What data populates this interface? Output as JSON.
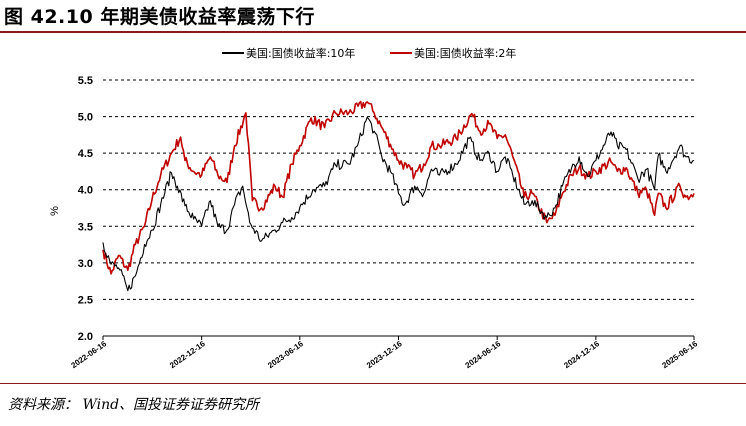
{
  "figure": {
    "title": "图 42.10 年期美债收益率震荡下行",
    "source": "资料来源： Wind、国投证券证券研究所"
  },
  "colors": {
    "title_rule": "#8a1a1a",
    "series_10y": "#000000",
    "series_2y": "#c00000"
  },
  "chart_data": {
    "type": "line",
    "ylabel": "%",
    "ylim": [
      2.0,
      5.5
    ],
    "yticks": [
      "2.0",
      "2.5",
      "3.0",
      "3.5",
      "4.0",
      "4.5",
      "5.0",
      "5.5"
    ],
    "grid": "horizontal dashed",
    "legend_position": "top",
    "xlim": [
      "2022-06-16",
      "2025-06-16"
    ],
    "xtick_labels": [
      "2022-06-16",
      "2022-12-16",
      "2023-06-16",
      "2023-12-16",
      "2024-06-16",
      "2024-12-16",
      "2025-06-16"
    ],
    "series": [
      {
        "name": "美国:国债收益率:10年",
        "color": "#000000",
        "points": [
          [
            "2022-06-16",
            3.28
          ],
          [
            "2022-07-01",
            2.98
          ],
          [
            "2022-07-15",
            2.93
          ],
          [
            "2022-08-01",
            2.62
          ],
          [
            "2022-08-15",
            2.82
          ],
          [
            "2022-09-01",
            3.25
          ],
          [
            "2022-09-15",
            3.45
          ],
          [
            "2022-10-01",
            3.8
          ],
          [
            "2022-10-21",
            4.23
          ],
          [
            "2022-11-01",
            4.05
          ],
          [
            "2022-11-15",
            3.78
          ],
          [
            "2022-12-01",
            3.6
          ],
          [
            "2022-12-16",
            3.5
          ],
          [
            "2023-01-01",
            3.85
          ],
          [
            "2023-01-15",
            3.5
          ],
          [
            "2023-02-01",
            3.45
          ],
          [
            "2023-02-15",
            3.8
          ],
          [
            "2023-03-02",
            4.05
          ],
          [
            "2023-03-15",
            3.55
          ],
          [
            "2023-04-06",
            3.3
          ],
          [
            "2023-05-01",
            3.45
          ],
          [
            "2023-05-15",
            3.55
          ],
          [
            "2023-06-01",
            3.62
          ],
          [
            "2023-06-16",
            3.76
          ],
          [
            "2023-07-10",
            4.0
          ],
          [
            "2023-08-01",
            4.05
          ],
          [
            "2023-08-21",
            4.34
          ],
          [
            "2023-09-15",
            4.35
          ],
          [
            "2023-10-01",
            4.6
          ],
          [
            "2023-10-19",
            4.99
          ],
          [
            "2023-11-01",
            4.8
          ],
          [
            "2023-11-15",
            4.45
          ],
          [
            "2023-12-01",
            4.25
          ],
          [
            "2023-12-16",
            3.95
          ],
          [
            "2023-12-27",
            3.79
          ],
          [
            "2024-01-15",
            4.05
          ],
          [
            "2024-02-01",
            3.95
          ],
          [
            "2024-02-15",
            4.28
          ],
          [
            "2024-03-01",
            4.2
          ],
          [
            "2024-04-01",
            4.35
          ],
          [
            "2024-04-25",
            4.7
          ],
          [
            "2024-05-15",
            4.4
          ],
          [
            "2024-06-01",
            4.5
          ],
          [
            "2024-06-16",
            4.25
          ],
          [
            "2024-07-01",
            4.45
          ],
          [
            "2024-07-15",
            4.2
          ],
          [
            "2024-08-05",
            3.8
          ],
          [
            "2024-08-20",
            3.85
          ],
          [
            "2024-09-16",
            3.62
          ],
          [
            "2024-10-01",
            3.75
          ],
          [
            "2024-10-15",
            4.05
          ],
          [
            "2024-11-01",
            4.3
          ],
          [
            "2024-11-15",
            4.45
          ],
          [
            "2024-12-01",
            4.18
          ],
          [
            "2024-12-16",
            4.4
          ],
          [
            "2025-01-13",
            4.79
          ],
          [
            "2025-01-25",
            4.6
          ],
          [
            "2025-02-10",
            4.55
          ],
          [
            "2025-03-04",
            4.15
          ],
          [
            "2025-03-20",
            4.28
          ],
          [
            "2025-04-04",
            4.0
          ],
          [
            "2025-04-11",
            4.48
          ],
          [
            "2025-04-25",
            4.25
          ],
          [
            "2025-05-21",
            4.6
          ],
          [
            "2025-06-01",
            4.45
          ],
          [
            "2025-06-16",
            4.4
          ]
        ]
      },
      {
        "name": "美国:国债收益率:2年",
        "color": "#c00000",
        "points": [
          [
            "2022-06-16",
            3.18
          ],
          [
            "2022-07-01",
            2.85
          ],
          [
            "2022-07-15",
            3.1
          ],
          [
            "2022-08-01",
            2.9
          ],
          [
            "2022-08-15",
            3.25
          ],
          [
            "2022-09-01",
            3.5
          ],
          [
            "2022-09-15",
            3.87
          ],
          [
            "2022-10-01",
            4.2
          ],
          [
            "2022-10-21",
            4.5
          ],
          [
            "2022-11-07",
            4.72
          ],
          [
            "2022-11-15",
            4.4
          ],
          [
            "2022-12-01",
            4.25
          ],
          [
            "2022-12-16",
            4.2
          ],
          [
            "2023-01-01",
            4.45
          ],
          [
            "2023-01-15",
            4.2
          ],
          [
            "2023-02-01",
            4.1
          ],
          [
            "2023-02-15",
            4.6
          ],
          [
            "2023-03-08",
            5.05
          ],
          [
            "2023-03-20",
            3.85
          ],
          [
            "2023-04-06",
            3.75
          ],
          [
            "2023-05-01",
            4.05
          ],
          [
            "2023-05-15",
            3.9
          ],
          [
            "2023-06-01",
            4.35
          ],
          [
            "2023-06-16",
            4.6
          ],
          [
            "2023-07-07",
            4.98
          ],
          [
            "2023-08-01",
            4.85
          ],
          [
            "2023-08-21",
            5.05
          ],
          [
            "2023-09-15",
            5.05
          ],
          [
            "2023-10-19",
            5.2
          ],
          [
            "2023-11-01",
            5.05
          ],
          [
            "2023-11-15",
            4.85
          ],
          [
            "2023-12-01",
            4.62
          ],
          [
            "2023-12-16",
            4.4
          ],
          [
            "2024-01-01",
            4.3
          ],
          [
            "2024-01-15",
            4.2
          ],
          [
            "2024-02-01",
            4.35
          ],
          [
            "2024-02-15",
            4.6
          ],
          [
            "2024-03-01",
            4.6
          ],
          [
            "2024-04-01",
            4.7
          ],
          [
            "2024-04-30",
            5.04
          ],
          [
            "2024-05-15",
            4.8
          ],
          [
            "2024-06-01",
            4.9
          ],
          [
            "2024-06-16",
            4.7
          ],
          [
            "2024-07-01",
            4.75
          ],
          [
            "2024-07-15",
            4.45
          ],
          [
            "2024-08-05",
            3.9
          ],
          [
            "2024-08-20",
            3.95
          ],
          [
            "2024-09-16",
            3.55
          ],
          [
            "2024-10-01",
            3.65
          ],
          [
            "2024-10-15",
            3.95
          ],
          [
            "2024-11-01",
            4.2
          ],
          [
            "2024-11-15",
            4.3
          ],
          [
            "2024-12-01",
            4.18
          ],
          [
            "2024-12-16",
            4.25
          ],
          [
            "2025-01-13",
            4.38
          ],
          [
            "2025-01-25",
            4.25
          ],
          [
            "2025-02-10",
            4.3
          ],
          [
            "2025-03-04",
            3.95
          ],
          [
            "2025-03-20",
            4.0
          ],
          [
            "2025-04-04",
            3.65
          ],
          [
            "2025-04-11",
            3.95
          ],
          [
            "2025-04-25",
            3.75
          ],
          [
            "2025-05-21",
            4.05
          ],
          [
            "2025-06-01",
            3.9
          ],
          [
            "2025-06-16",
            3.95
          ]
        ]
      }
    ]
  }
}
